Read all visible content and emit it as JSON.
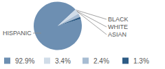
{
  "chart_data": {
    "type": "pie",
    "categories": [
      "HISPANIC",
      "BLACK",
      "WHITE",
      "ASIAN"
    ],
    "values": [
      92.9,
      3.4,
      2.4,
      1.3
    ],
    "value_labels": [
      "92.9%",
      "3.4%",
      "2.4%",
      "1.3%"
    ],
    "colors": [
      "#6d8fb2",
      "#d0dce8",
      "#a7bcd2",
      "#2d5b85"
    ],
    "legend": "bottom"
  }
}
